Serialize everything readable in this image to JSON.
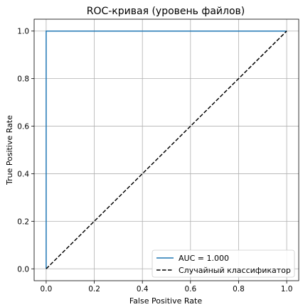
{
  "chart_data": {
    "type": "line",
    "title": "ROC-кривая (уровень файлов)",
    "xlabel": "False Positive Rate",
    "ylabel": "True Positive Rate",
    "xlim": [
      -0.05,
      1.05
    ],
    "ylim": [
      -0.05,
      1.05
    ],
    "xticks": [
      0.0,
      0.2,
      0.4,
      0.6,
      0.8,
      1.0
    ],
    "yticks": [
      0.0,
      0.2,
      0.4,
      0.6,
      0.8,
      1.0
    ],
    "xtick_labels": [
      "0.0",
      "0.2",
      "0.4",
      "0.6",
      "0.8",
      "1.0"
    ],
    "ytick_labels": [
      "0.0",
      "0.2",
      "0.4",
      "0.6",
      "0.8",
      "1.0"
    ],
    "grid": true,
    "legend_position": "lower-right",
    "series": [
      {
        "name": "AUC = 1.000",
        "style": "solid",
        "color": "#1f77b4",
        "x": [
          0.0,
          0.0,
          1.0
        ],
        "y": [
          0.0,
          1.0,
          1.0
        ]
      },
      {
        "name": "Случайный классификатор",
        "style": "dashed",
        "color": "#000000",
        "x": [
          0.0,
          1.0
        ],
        "y": [
          0.0,
          1.0
        ]
      }
    ]
  }
}
